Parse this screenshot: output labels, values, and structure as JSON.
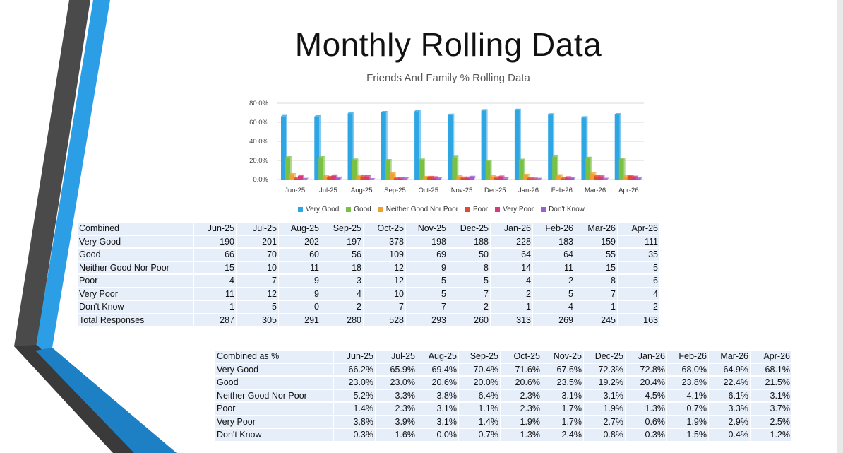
{
  "slide": {
    "title": "Monthly Rolling Data",
    "subtitle": "Friends And Family % Rolling Data"
  },
  "colors": {
    "very_good": "#2ea6e4",
    "good": "#7ac143",
    "neither": "#f0a030",
    "poor": "#e04a30",
    "very_poor": "#d63a7a",
    "dont_know": "#9b5fd6",
    "accent_blue": "#2c9ee6",
    "dark_grey": "#4a4a4a"
  },
  "chart_data": {
    "type": "bar",
    "title": "Friends And Family % Rolling Data",
    "categories": [
      "Jun-25",
      "Jul-25",
      "Aug-25",
      "Sep-25",
      "Oct-25",
      "Nov-25",
      "Dec-25",
      "Jan-26",
      "Feb-26",
      "Mar-26",
      "Apr-26"
    ],
    "ylim": [
      0,
      80
    ],
    "yticks": [
      "0.0%",
      "20.0%",
      "40.0%",
      "60.0%",
      "80.0%"
    ],
    "grid": true,
    "legend_position": "bottom",
    "series": [
      {
        "name": "Very Good",
        "values": [
          66.2,
          65.9,
          69.4,
          70.4,
          71.6,
          67.6,
          72.3,
          72.8,
          68.0,
          64.9,
          68.1
        ]
      },
      {
        "name": "Good",
        "values": [
          23.0,
          23.0,
          20.6,
          20.0,
          20.6,
          23.5,
          19.2,
          20.4,
          23.8,
          22.4,
          21.5
        ]
      },
      {
        "name": "Neither Good Nor Poor",
        "values": [
          5.2,
          3.3,
          3.8,
          6.4,
          2.3,
          3.1,
          3.1,
          4.5,
          4.1,
          6.1,
          3.1
        ]
      },
      {
        "name": "Poor",
        "values": [
          1.4,
          2.3,
          3.1,
          1.1,
          2.3,
          1.7,
          1.9,
          1.3,
          0.7,
          3.3,
          3.7
        ]
      },
      {
        "name": "Very Poor",
        "values": [
          3.8,
          3.9,
          3.1,
          1.4,
          1.9,
          1.7,
          2.7,
          0.6,
          1.9,
          2.9,
          2.5
        ]
      },
      {
        "name": "Don't Know",
        "values": [
          0.3,
          1.6,
          0.0,
          0.7,
          1.3,
          2.4,
          0.8,
          0.3,
          1.5,
          0.4,
          1.2
        ]
      }
    ]
  },
  "counts_table": {
    "header": [
      "Combined",
      "Jun-25",
      "Jul-25",
      "Aug-25",
      "Sep-25",
      "Oct-25",
      "Nov-25",
      "Dec-25",
      "Jan-26",
      "Feb-26",
      "Mar-26",
      "Apr-26"
    ],
    "rows": [
      [
        "Very Good",
        "190",
        "201",
        "202",
        "197",
        "378",
        "198",
        "188",
        "228",
        "183",
        "159",
        "111"
      ],
      [
        "Good",
        "66",
        "70",
        "60",
        "56",
        "109",
        "69",
        "50",
        "64",
        "64",
        "55",
        "35"
      ],
      [
        "Neither Good Nor Poor",
        "15",
        "10",
        "11",
        "18",
        "12",
        "9",
        "8",
        "14",
        "11",
        "15",
        "5"
      ],
      [
        "Poor",
        "4",
        "7",
        "9",
        "3",
        "12",
        "5",
        "5",
        "4",
        "2",
        "8",
        "6"
      ],
      [
        "Very Poor",
        "11",
        "12",
        "9",
        "4",
        "10",
        "5",
        "7",
        "2",
        "5",
        "7",
        "4"
      ],
      [
        "Don't Know",
        "1",
        "5",
        "0",
        "2",
        "7",
        "7",
        "2",
        "1",
        "4",
        "1",
        "2"
      ],
      [
        "Total Responses",
        "287",
        "305",
        "291",
        "280",
        "528",
        "293",
        "260",
        "313",
        "269",
        "245",
        "163"
      ]
    ]
  },
  "percent_table": {
    "header": [
      "Combined as %",
      "Jun-25",
      "Jul-25",
      "Aug-25",
      "Sep-25",
      "Oct-25",
      "Nov-25",
      "Dec-25",
      "Jan-26",
      "Feb-26",
      "Mar-26",
      "Apr-26"
    ],
    "rows": [
      [
        "Very Good",
        "66.2%",
        "65.9%",
        "69.4%",
        "70.4%",
        "71.6%",
        "67.6%",
        "72.3%",
        "72.8%",
        "68.0%",
        "64.9%",
        "68.1%"
      ],
      [
        "Good",
        "23.0%",
        "23.0%",
        "20.6%",
        "20.0%",
        "20.6%",
        "23.5%",
        "19.2%",
        "20.4%",
        "23.8%",
        "22.4%",
        "21.5%"
      ],
      [
        "Neither Good Nor Poor",
        "5.2%",
        "3.3%",
        "3.8%",
        "6.4%",
        "2.3%",
        "3.1%",
        "3.1%",
        "4.5%",
        "4.1%",
        "6.1%",
        "3.1%"
      ],
      [
        "Poor",
        "1.4%",
        "2.3%",
        "3.1%",
        "1.1%",
        "2.3%",
        "1.7%",
        "1.9%",
        "1.3%",
        "0.7%",
        "3.3%",
        "3.7%"
      ],
      [
        "Very Poor",
        "3.8%",
        "3.9%",
        "3.1%",
        "1.4%",
        "1.9%",
        "1.7%",
        "2.7%",
        "0.6%",
        "1.9%",
        "2.9%",
        "2.5%"
      ],
      [
        "Don't Know",
        "0.3%",
        "1.6%",
        "0.0%",
        "0.7%",
        "1.3%",
        "2.4%",
        "0.8%",
        "0.3%",
        "1.5%",
        "0.4%",
        "1.2%"
      ]
    ]
  }
}
